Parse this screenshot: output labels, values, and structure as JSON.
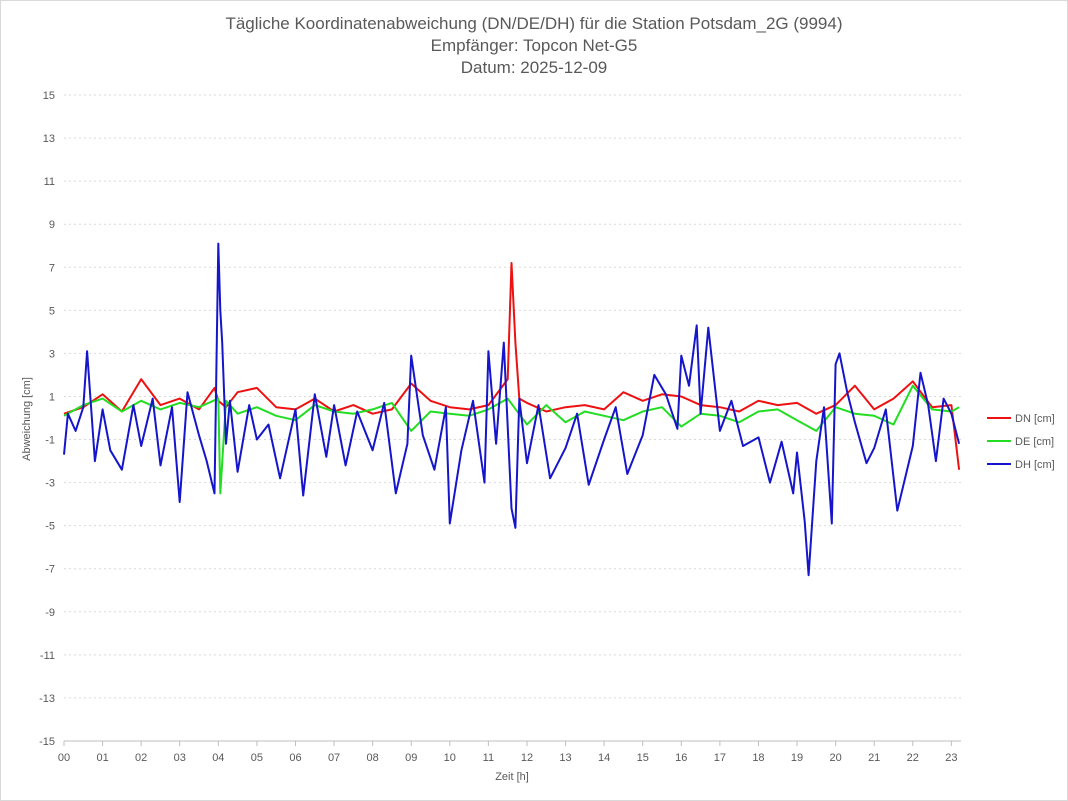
{
  "chart_data": {
    "type": "line",
    "title_lines": [
      "Tägliche Koordinatenabweichung (DN/DE/DH) für die Station Potsdam_2G (9994)",
      "Empfänger: Topcon Net-G5",
      "Datum: 2025-12-09"
    ],
    "xlabel": "Zeit [h]",
    "ylabel": "Abweichung [cm]",
    "xlim": [
      0,
      23.25
    ],
    "ylim": [
      -15,
      15
    ],
    "x_ticks": [
      0,
      1,
      2,
      3,
      4,
      5,
      6,
      7,
      8,
      9,
      10,
      11,
      12,
      13,
      14,
      15,
      16,
      17,
      18,
      19,
      20,
      21,
      22,
      23
    ],
    "x_tick_labels": [
      "00",
      "01",
      "02",
      "03",
      "04",
      "05",
      "06",
      "07",
      "08",
      "09",
      "10",
      "11",
      "12",
      "13",
      "14",
      "15",
      "16",
      "17",
      "18",
      "19",
      "20",
      "21",
      "22",
      "23"
    ],
    "y_ticks": [
      15,
      13,
      11,
      9,
      7,
      5,
      3,
      1,
      -1,
      -3,
      -5,
      -7,
      -9,
      -11,
      -13,
      -15
    ],
    "y_tick_labels": [
      "15",
      "13",
      "11",
      "9",
      "7",
      "5",
      "3",
      "1",
      "-1",
      "-3",
      "-5",
      "-7",
      "-9",
      "-11",
      "-13",
      "-15"
    ],
    "grid": "horizontal dotted",
    "legend_position": "right",
    "series": [
      {
        "name": "DN [cm]",
        "color": "#ee1111",
        "x": [
          0,
          0.5,
          1,
          1.5,
          2,
          2.5,
          3,
          3.5,
          3.9,
          4,
          4.2,
          4.5,
          5,
          5.5,
          6,
          6.5,
          7,
          7.5,
          8,
          8.5,
          9,
          9.5,
          10,
          10.5,
          11,
          11.5,
          11.6,
          11.7,
          11.8,
          12,
          12.5,
          13,
          13.5,
          14,
          14.5,
          15,
          15.5,
          16,
          16.5,
          17,
          17.5,
          18,
          18.5,
          19,
          19.5,
          20,
          20.5,
          21,
          21.5,
          22,
          22.5,
          23,
          23.2
        ],
        "y": [
          0.2,
          0.5,
          1.1,
          0.3,
          1.8,
          0.6,
          0.9,
          0.4,
          1.4,
          0.8,
          0.5,
          1.2,
          1.4,
          0.5,
          0.4,
          0.9,
          0.3,
          0.6,
          0.2,
          0.4,
          1.6,
          0.8,
          0.5,
          0.4,
          0.6,
          1.8,
          7.2,
          3.5,
          0.9,
          0.7,
          0.3,
          0.5,
          0.6,
          0.4,
          1.2,
          0.8,
          1.1,
          1.0,
          0.6,
          0.5,
          0.3,
          0.8,
          0.6,
          0.7,
          0.2,
          0.6,
          1.5,
          0.4,
          0.9,
          1.7,
          0.5,
          0.6,
          -2.4
        ]
      },
      {
        "name": "DE [cm]",
        "color": "#22dd22",
        "x": [
          0,
          0.5,
          1,
          1.5,
          2,
          2.5,
          3,
          3.5,
          4,
          4.05,
          4.2,
          4.5,
          5,
          5.5,
          6,
          6.5,
          7,
          7.5,
          8,
          8.5,
          9,
          9.5,
          10,
          10.5,
          11,
          11.5,
          12,
          12.5,
          13,
          13.5,
          14,
          14.5,
          15,
          15.5,
          16,
          16.5,
          17,
          17.5,
          18,
          18.5,
          19,
          19.5,
          20,
          20.5,
          21,
          21.5,
          22,
          22.5,
          23,
          23.2
        ],
        "y": [
          0.1,
          0.6,
          0.9,
          0.3,
          0.8,
          0.4,
          0.7,
          0.5,
          0.9,
          -3.5,
          0.8,
          0.2,
          0.5,
          0.1,
          -0.1,
          0.6,
          0.3,
          0.2,
          0.4,
          0.7,
          -0.6,
          0.3,
          0.2,
          0.1,
          0.4,
          0.9,
          -0.3,
          0.6,
          -0.2,
          0.3,
          0.1,
          -0.1,
          0.3,
          0.5,
          -0.4,
          0.2,
          0.1,
          -0.2,
          0.3,
          0.4,
          -0.1,
          -0.6,
          0.5,
          0.2,
          0.1,
          -0.3,
          1.5,
          0.4,
          0.3,
          0.5
        ]
      },
      {
        "name": "DH [cm]",
        "color": "#1515cc",
        "x": [
          0,
          0.1,
          0.3,
          0.5,
          0.6,
          0.8,
          1,
          1.2,
          1.5,
          1.8,
          2,
          2.3,
          2.5,
          2.8,
          3,
          3.2,
          3.5,
          3.7,
          3.9,
          4,
          4.05,
          4.1,
          4.2,
          4.3,
          4.5,
          4.8,
          5,
          5.3,
          5.6,
          6,
          6.2,
          6.5,
          6.8,
          7,
          7.3,
          7.6,
          8,
          8.3,
          8.6,
          8.9,
          9,
          9.3,
          9.6,
          9.9,
          10,
          10.3,
          10.6,
          10.9,
          11,
          11.2,
          11.4,
          11.6,
          11.7,
          11.8,
          12,
          12.3,
          12.6,
          13,
          13.3,
          13.6,
          14,
          14.3,
          14.6,
          15,
          15.3,
          15.6,
          15.9,
          16,
          16.2,
          16.4,
          16.5,
          16.7,
          17,
          17.3,
          17.6,
          18,
          18.3,
          18.6,
          18.9,
          19,
          19.2,
          19.3,
          19.5,
          19.7,
          19.9,
          20,
          20.1,
          20.3,
          20.5,
          20.8,
          21,
          21.3,
          21.6,
          22,
          22.2,
          22.4,
          22.6,
          22.8,
          23,
          23.2
        ],
        "y": [
          -1.7,
          0.2,
          -0.6,
          0.5,
          3.1,
          -2.0,
          0.4,
          -1.5,
          -2.4,
          0.6,
          -1.3,
          0.9,
          -2.2,
          0.5,
          -3.9,
          1.2,
          -0.8,
          -2.0,
          -3.5,
          8.1,
          5.0,
          3.5,
          -1.2,
          0.8,
          -2.5,
          0.6,
          -1.0,
          -0.3,
          -2.8,
          0.4,
          -3.6,
          1.1,
          -1.8,
          0.6,
          -2.2,
          0.3,
          -1.5,
          0.7,
          -3.5,
          -1.2,
          2.9,
          -0.8,
          -2.4,
          0.5,
          -4.9,
          -1.5,
          0.8,
          -3.0,
          3.1,
          -1.2,
          3.5,
          -4.2,
          -5.1,
          0.9,
          -2.1,
          0.6,
          -2.8,
          -1.4,
          0.2,
          -3.1,
          -1.0,
          0.5,
          -2.6,
          -0.8,
          2.0,
          1.1,
          -0.5,
          2.9,
          1.5,
          4.3,
          0.2,
          4.2,
          -0.6,
          0.8,
          -1.3,
          -0.9,
          -3.0,
          -1.1,
          -3.5,
          -1.6,
          -4.8,
          -7.3,
          -2.0,
          0.5,
          -4.9,
          2.5,
          3.0,
          1.2,
          -0.2,
          -2.1,
          -1.4,
          0.4,
          -4.3,
          -1.3,
          2.1,
          0.6,
          -2.0,
          0.9,
          0.2,
          -1.2
        ]
      }
    ]
  }
}
